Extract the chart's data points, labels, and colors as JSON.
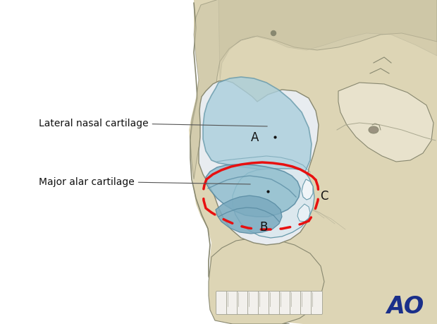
{
  "bg_color": "#ffffff",
  "skull_fill": "#ddd5b5",
  "skull_fill2": "#e8e2cc",
  "skull_outline": "#888870",
  "skull_outline2": "#aaa890",
  "cartilage_lateral_fill": "#aacfdd",
  "cartilage_lateral_stroke": "#6699aa",
  "cartilage_alar_fill": "#90bece",
  "cartilage_alar_stroke": "#5588a0",
  "cartilage_inner_fill": "#c0dde8",
  "nose_bg_fill": "#e8f0f5",
  "red_color": "#e81010",
  "label_color": "#111111",
  "ao_color": "#1a2f8a",
  "label_lateral": "Lateral nasal cartilage",
  "label_alar": "Major alar cartilage",
  "label_A": "A",
  "label_B": "B",
  "label_C": "C",
  "annotation_lw": 0.8
}
